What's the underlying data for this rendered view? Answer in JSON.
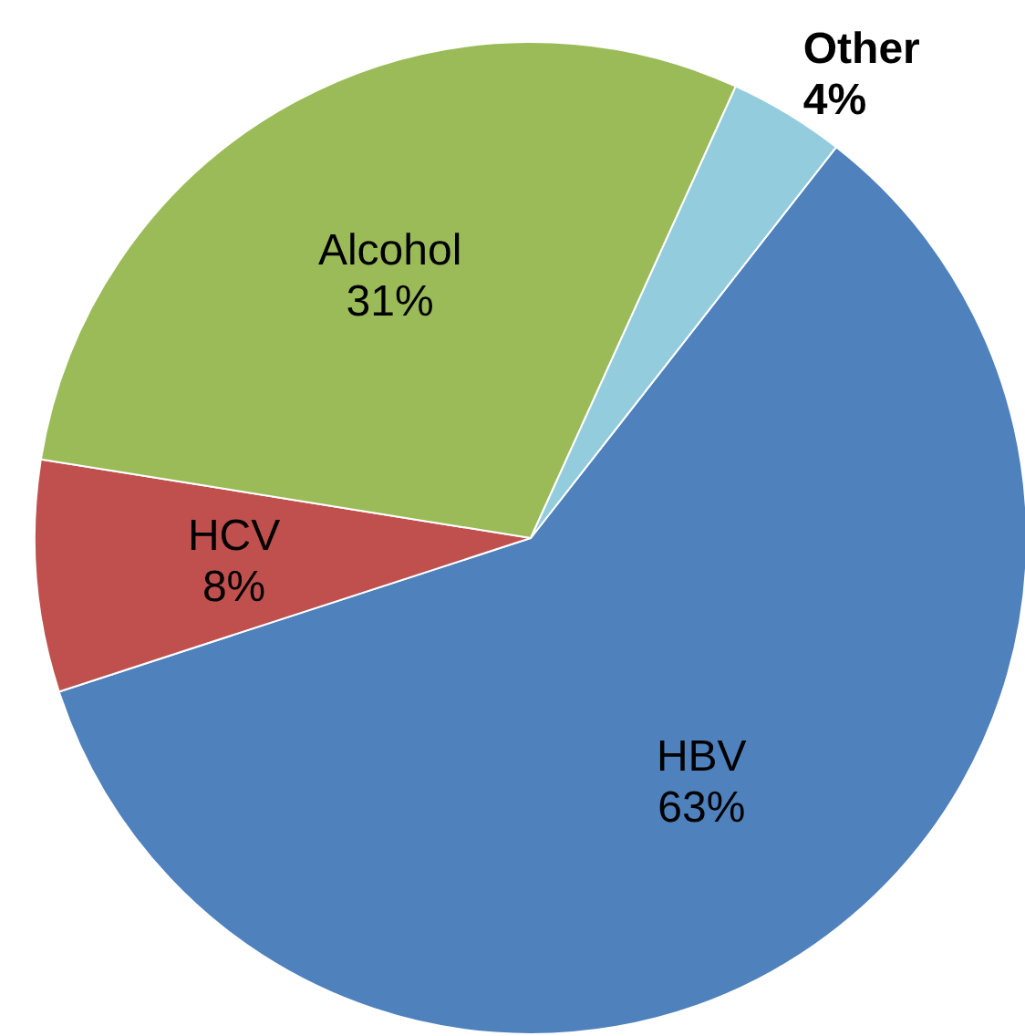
{
  "chart_data": {
    "type": "pie",
    "categories": [
      "HBV",
      "HCV",
      "Alcohol",
      "Other"
    ],
    "values": [
      63,
      8,
      31,
      4
    ],
    "value_labels": [
      "63%",
      "8%",
      "31%",
      "4%"
    ],
    "colors": [
      "#4f81bd",
      "#c0504d",
      "#9bbb59",
      "#93cddd"
    ]
  }
}
